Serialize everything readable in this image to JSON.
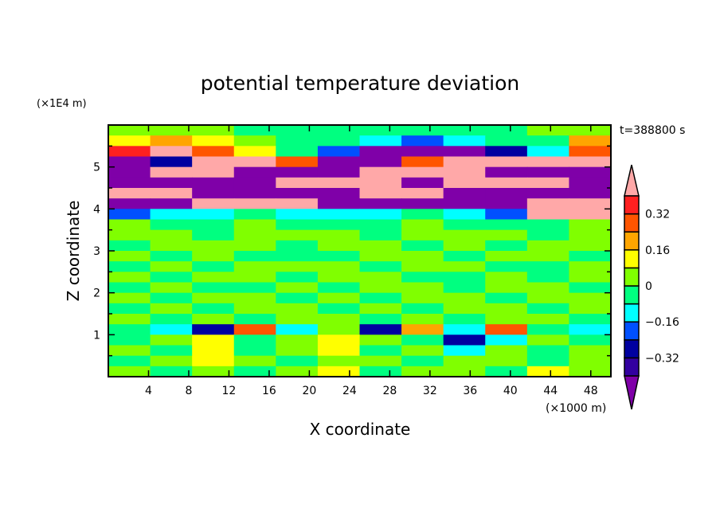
{
  "chart_data": {
    "type": "heatmap",
    "title": "potential temperature deviation",
    "xlabel": "X coordinate",
    "ylabel": "Z coordinate",
    "x_unit": "(×1000 m)",
    "y_unit": "(×1E4 m)",
    "time_label": "t=388800 s",
    "xlim": [
      0,
      50
    ],
    "ylim": [
      0,
      6
    ],
    "xticks": [
      4,
      8,
      12,
      16,
      20,
      24,
      28,
      32,
      36,
      40,
      44,
      48
    ],
    "yticks": [
      1,
      2,
      3,
      4,
      5
    ],
    "colorbar": {
      "levels": [
        -0.4,
        -0.32,
        -0.24,
        -0.16,
        -0.08,
        0,
        0.08,
        0.16,
        0.24,
        0.32,
        0.4
      ],
      "colors": [
        "#7f00a8",
        "#3300a0",
        "#0000a0",
        "#0050ff",
        "#00ffff",
        "#00ff80",
        "#80ff00",
        "#ffff00",
        "#ffa500",
        "#ff5500",
        "#ff2020",
        "#ffa8a8"
      ],
      "tick_labels": [
        "0.32",
        "0.16",
        "0",
        "−0.16",
        "−0.32"
      ],
      "tick_values": [
        0.32,
        0.16,
        0,
        -0.16,
        -0.32
      ],
      "extend": "both"
    },
    "grid_note": "rows from top (z=6) to bottom (z=0), 0.25 step; 12 columns across x",
    "values": [
      [
        0.02,
        0.02,
        0.02,
        -0.02,
        -0.02,
        -0.02,
        -0.02,
        -0.02,
        -0.02,
        -0.02,
        0.02,
        0.02
      ],
      [
        0.1,
        0.2,
        0.1,
        0.02,
        -0.02,
        -0.02,
        -0.1,
        -0.2,
        -0.1,
        -0.02,
        -0.02,
        0.2
      ],
      [
        0.35,
        0.45,
        0.3,
        0.1,
        -0.05,
        -0.2,
        -0.45,
        -0.45,
        -0.45,
        -0.3,
        -0.1,
        0.3
      ],
      [
        -0.45,
        -0.3,
        0.45,
        0.45,
        0.3,
        -0.45,
        -0.45,
        0.3,
        0.45,
        0.45,
        0.45,
        0.45
      ],
      [
        -0.45,
        0.45,
        0.45,
        -0.45,
        -0.45,
        -0.45,
        0.45,
        0.45,
        0.45,
        -0.45,
        -0.45,
        -0.45
      ],
      [
        -0.45,
        -0.45,
        -0.45,
        -0.45,
        0.45,
        0.45,
        0.45,
        -0.45,
        0.45,
        0.45,
        0.45,
        -0.45
      ],
      [
        0.45,
        0.45,
        -0.45,
        -0.45,
        -0.45,
        -0.45,
        0.45,
        0.45,
        -0.45,
        -0.45,
        -0.45,
        -0.45
      ],
      [
        -0.45,
        -0.45,
        0.45,
        0.45,
        0.45,
        -0.45,
        -0.45,
        -0.45,
        -0.45,
        -0.45,
        0.45,
        0.45
      ],
      [
        -0.2,
        -0.12,
        -0.1,
        -0.05,
        -0.1,
        -0.12,
        -0.12,
        -0.05,
        -0.12,
        -0.2,
        0.45,
        0.45
      ],
      [
        0.04,
        -0.04,
        -0.04,
        0.04,
        -0.04,
        -0.04,
        -0.04,
        0.04,
        -0.04,
        -0.04,
        -0.04,
        0.04
      ],
      [
        0.04,
        0.04,
        -0.04,
        0.04,
        0.04,
        0.04,
        -0.04,
        0.04,
        0.04,
        0.04,
        -0.04,
        0.04
      ],
      [
        -0.04,
        0.04,
        0.04,
        0.04,
        -0.04,
        0.04,
        0.04,
        -0.04,
        0.04,
        -0.04,
        0.04,
        0.04
      ],
      [
        0.04,
        -0.04,
        0.04,
        -0.04,
        -0.04,
        -0.04,
        0.04,
        0.04,
        -0.04,
        0.04,
        0.04,
        -0.04
      ],
      [
        -0.04,
        0.04,
        -0.04,
        0.04,
        0.04,
        0.04,
        -0.04,
        0.04,
        0.04,
        -0.04,
        -0.04,
        0.04
      ],
      [
        0.04,
        -0.04,
        0.04,
        0.04,
        -0.04,
        0.04,
        0.04,
        -0.04,
        -0.04,
        0.04,
        -0.04,
        0.04
      ],
      [
        -0.04,
        0.04,
        -0.04,
        -0.04,
        0.04,
        -0.04,
        0.04,
        0.04,
        -0.04,
        0.04,
        0.04,
        -0.04
      ],
      [
        0.04,
        -0.04,
        0.04,
        0.04,
        -0.04,
        0.04,
        -0.04,
        0.04,
        0.04,
        -0.04,
        0.04,
        0.04
      ],
      [
        -0.04,
        0.04,
        -0.04,
        0.04,
        0.04,
        -0.04,
        0.04,
        -0.04,
        0.04,
        0.04,
        -0.04,
        0.04
      ],
      [
        0.04,
        -0.04,
        0.04,
        -0.04,
        0.04,
        0.04,
        -0.04,
        0.04,
        -0.04,
        0.04,
        0.04,
        -0.04
      ],
      [
        -0.04,
        -0.12,
        -0.25,
        0.3,
        -0.1,
        0.04,
        -0.3,
        0.2,
        -0.12,
        0.3,
        -0.04,
        -0.12
      ],
      [
        -0.04,
        0.04,
        0.12,
        -0.04,
        0.04,
        0.12,
        0.04,
        -0.04,
        -0.25,
        -0.12,
        0.04,
        -0.04
      ],
      [
        0.04,
        -0.04,
        0.12,
        -0.04,
        0.04,
        0.12,
        -0.04,
        0.04,
        -0.12,
        0.04,
        -0.04,
        0.04
      ],
      [
        -0.04,
        0.04,
        0.12,
        0.04,
        -0.04,
        0.04,
        0.04,
        -0.04,
        0.04,
        0.04,
        -0.04,
        0.04
      ],
      [
        0.04,
        -0.04,
        0.04,
        -0.04,
        0.04,
        0.12,
        -0.04,
        0.04,
        0.04,
        -0.04,
        0.12,
        0.04
      ]
    ]
  }
}
